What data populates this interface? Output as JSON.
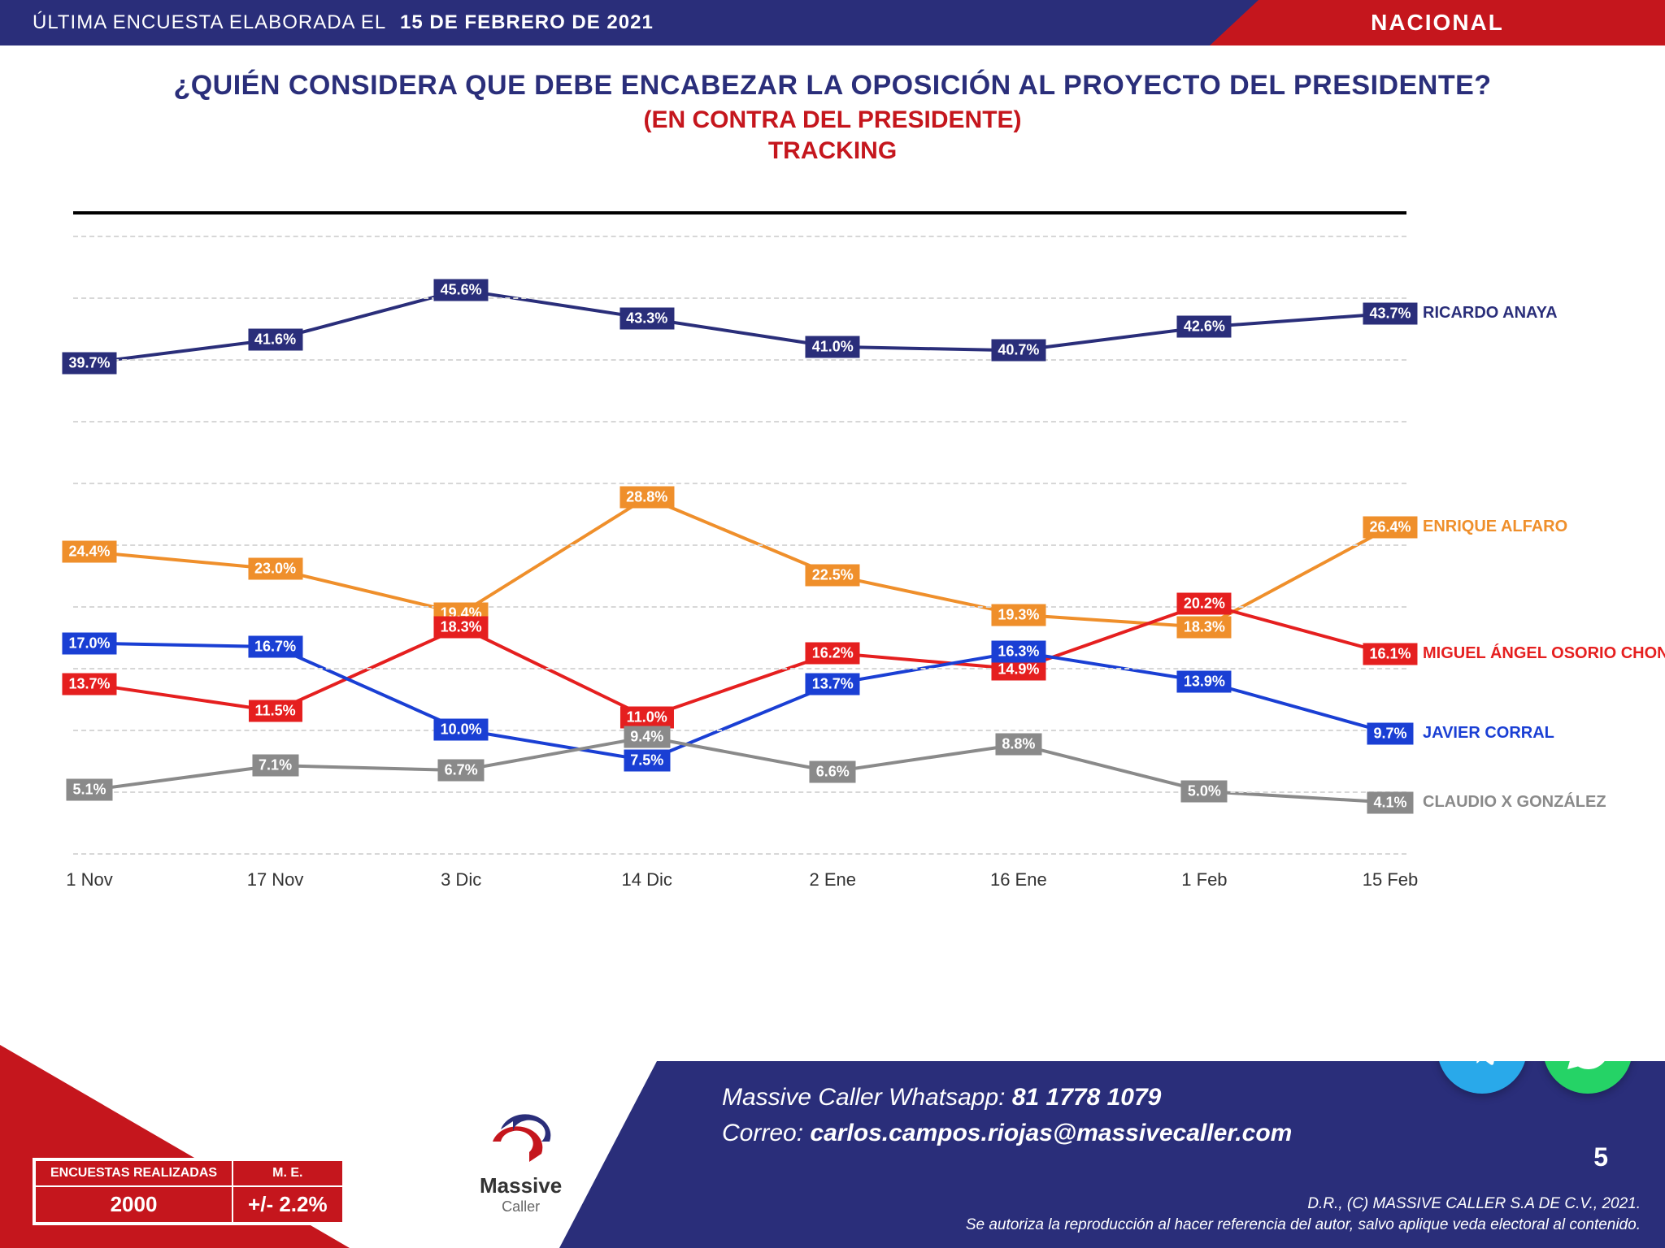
{
  "header": {
    "prefix": "ÚLTIMA ENCUESTA ELABORADA EL",
    "date": "15 DE FEBRERO DE 2021",
    "scope": "NACIONAL"
  },
  "title": {
    "main": "¿QUIÉN CONSIDERA QUE DEBE ENCABEZAR LA OPOSICIÓN AL PROYECTO DEL PRESIDENTE?",
    "sub1": "(EN CONTRA DEL PRESIDENTE)",
    "sub2": "TRACKING"
  },
  "chart": {
    "type": "line",
    "x_categories": [
      "1 Nov",
      "17 Nov",
      "3 Dic",
      "14 Dic",
      "2 Ene",
      "16 Ene",
      "1 Feb",
      "15 Feb"
    ],
    "ylim": [
      0,
      50
    ],
    "grid_y": [
      0,
      5,
      10,
      15,
      20,
      25,
      30,
      35,
      40,
      45,
      50
    ],
    "grid_color": "#d7d7d7",
    "background_color": "#ffffff",
    "line_width": 4,
    "marker_size": 9,
    "label_fontsize": 18,
    "series": [
      {
        "name": "RICARDO ANAYA",
        "color": "#2a2e7a",
        "values": [
          39.7,
          41.6,
          45.6,
          43.3,
          41.0,
          40.7,
          42.6,
          43.7
        ]
      },
      {
        "name": "ENRIQUE ALFARO",
        "color": "#ef8f2b",
        "values": [
          24.4,
          23.0,
          19.4,
          28.8,
          22.5,
          19.3,
          18.3,
          26.4
        ]
      },
      {
        "name": "MIGUEL ÁNGEL OSORIO CHONG",
        "color": "#e51f1f",
        "values": [
          13.7,
          11.5,
          18.3,
          11.0,
          16.2,
          14.9,
          20.2,
          16.1
        ]
      },
      {
        "name": "JAVIER CORRAL",
        "color": "#1a3fd4",
        "values": [
          17.0,
          16.7,
          10.0,
          7.5,
          13.7,
          16.3,
          13.9,
          9.7
        ]
      },
      {
        "name": "CLAUDIO X GONZÁLEZ",
        "color": "#8a8a8a",
        "values": [
          5.1,
          7.1,
          6.7,
          9.4,
          6.6,
          8.8,
          5.0,
          4.1
        ]
      }
    ]
  },
  "footer": {
    "contact_label_wa": "Massive Caller Whatsapp:",
    "contact_wa": "81 1778 1079",
    "contact_label_mail": "Correo:",
    "contact_mail": "carlos.campos.riojas@massivecaller.com",
    "page": "5",
    "legal1": "D.R., (C) MASSIVE CALLER S.A DE C.V., 2021.",
    "legal2": "Se autoriza la reproducción al hacer referencia del autor, salvo aplique veda electoral al contenido.",
    "stats": {
      "hdr_n": "ENCUESTAS REALIZADAS",
      "hdr_me": "M. E.",
      "n": "2000",
      "me": "+/- 2.2%"
    },
    "logo_text": "Massive",
    "logo_sub": "Caller"
  }
}
